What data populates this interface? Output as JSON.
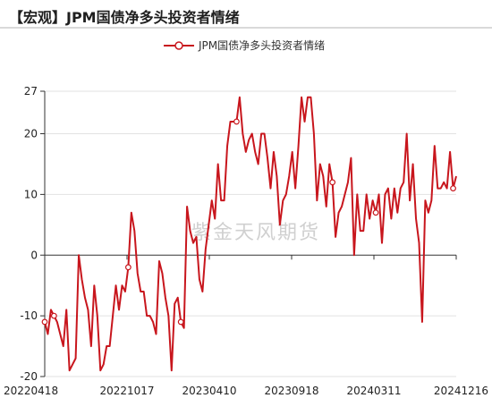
{
  "title": "【宏观】JPM国债净多头投资者情绪",
  "watermark": "紫金天风期货",
  "chart_data": {
    "type": "line",
    "series": [
      {
        "name": "JPM国债净多头投资者情绪",
        "color": "#c8161d",
        "values": [
          -11,
          -13,
          -9,
          -10,
          -11,
          -13,
          -15,
          -9,
          -19,
          -18,
          -17,
          0,
          -4,
          -7,
          -9,
          -15,
          -5,
          -10,
          -19,
          -18,
          -15,
          -15,
          -10,
          -5,
          -9,
          -5,
          -6,
          -2,
          7,
          4,
          -3,
          -6,
          -6,
          -10,
          -10,
          -11,
          -13,
          -1,
          -3,
          -7,
          -10,
          -19,
          -8,
          -7,
          -11,
          -12,
          8,
          4,
          2,
          3,
          -4,
          -6,
          1,
          5,
          9,
          6,
          15,
          9,
          9,
          18,
          22,
          22,
          22,
          26,
          20,
          17,
          19,
          20,
          17,
          15,
          20,
          20,
          16,
          11,
          17,
          13,
          5,
          9,
          10,
          13,
          17,
          11,
          18,
          26,
          22,
          26,
          26,
          20,
          9,
          15,
          13,
          8,
          15,
          12,
          3,
          7,
          8,
          10,
          12,
          16,
          0,
          10,
          4,
          4,
          10,
          6,
          9,
          7,
          10,
          2,
          10,
          11,
          6,
          11,
          7,
          11,
          12,
          20,
          9,
          15,
          6,
          2,
          -11,
          9,
          7,
          9,
          18,
          11,
          11,
          12,
          11,
          17,
          11,
          13
        ],
        "markers": [
          0,
          3,
          27,
          44,
          62,
          93,
          107,
          132,
          150
        ]
      }
    ],
    "x_ticks": [
      "20220418",
      "20221017",
      "20230410",
      "20230918",
      "20240311",
      "20241216"
    ],
    "ylim": [
      -20,
      27
    ],
    "y_ticks": [
      27,
      20,
      10,
      0,
      -10,
      -20
    ],
    "legend": "top-center",
    "grid": "horizontal"
  }
}
